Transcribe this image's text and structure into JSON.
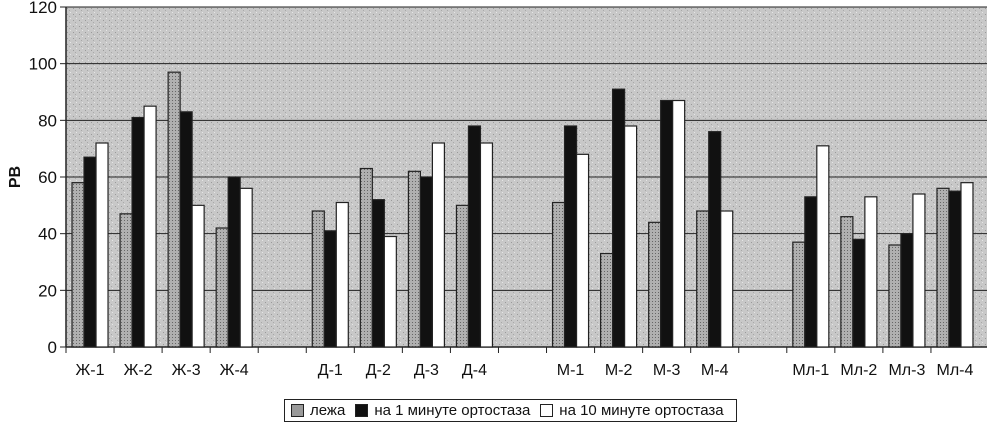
{
  "chart_data": {
    "type": "bar",
    "title": "",
    "xlabel": "",
    "ylabel": "РВ",
    "ylim": [
      0,
      120
    ],
    "yticks": [
      0,
      20,
      40,
      60,
      80,
      100,
      120
    ],
    "grid": true,
    "legend_position": "bottom",
    "categories": [
      "Ж-1",
      "Ж-2",
      "Ж-3",
      "Ж-4",
      "",
      "Д-1",
      "Д-2",
      "Д-3",
      "Д-4",
      "",
      "М-1",
      "М-2",
      "М-3",
      "М-4",
      "",
      "Мл-1",
      "Мл-2",
      "Мл-3",
      "Мл-4"
    ],
    "series": [
      {
        "name": "лежа",
        "color": "#9a9a9a",
        "values": [
          58,
          47,
          97,
          42,
          null,
          48,
          63,
          62,
          50,
          null,
          51,
          33,
          44,
          48,
          null,
          37,
          46,
          36,
          56
        ]
      },
      {
        "name": "на 1 минуте ортостаза",
        "color": "#111111",
        "values": [
          67,
          81,
          83,
          60,
          null,
          41,
          52,
          60,
          78,
          null,
          78,
          91,
          87,
          76,
          null,
          53,
          38,
          40,
          55
        ]
      },
      {
        "name": "на 10 минуте ортостаза",
        "color": "#ffffff",
        "values": [
          72,
          85,
          50,
          56,
          null,
          51,
          39,
          72,
          72,
          null,
          68,
          78,
          87,
          48,
          null,
          71,
          53,
          54,
          58
        ]
      }
    ]
  }
}
